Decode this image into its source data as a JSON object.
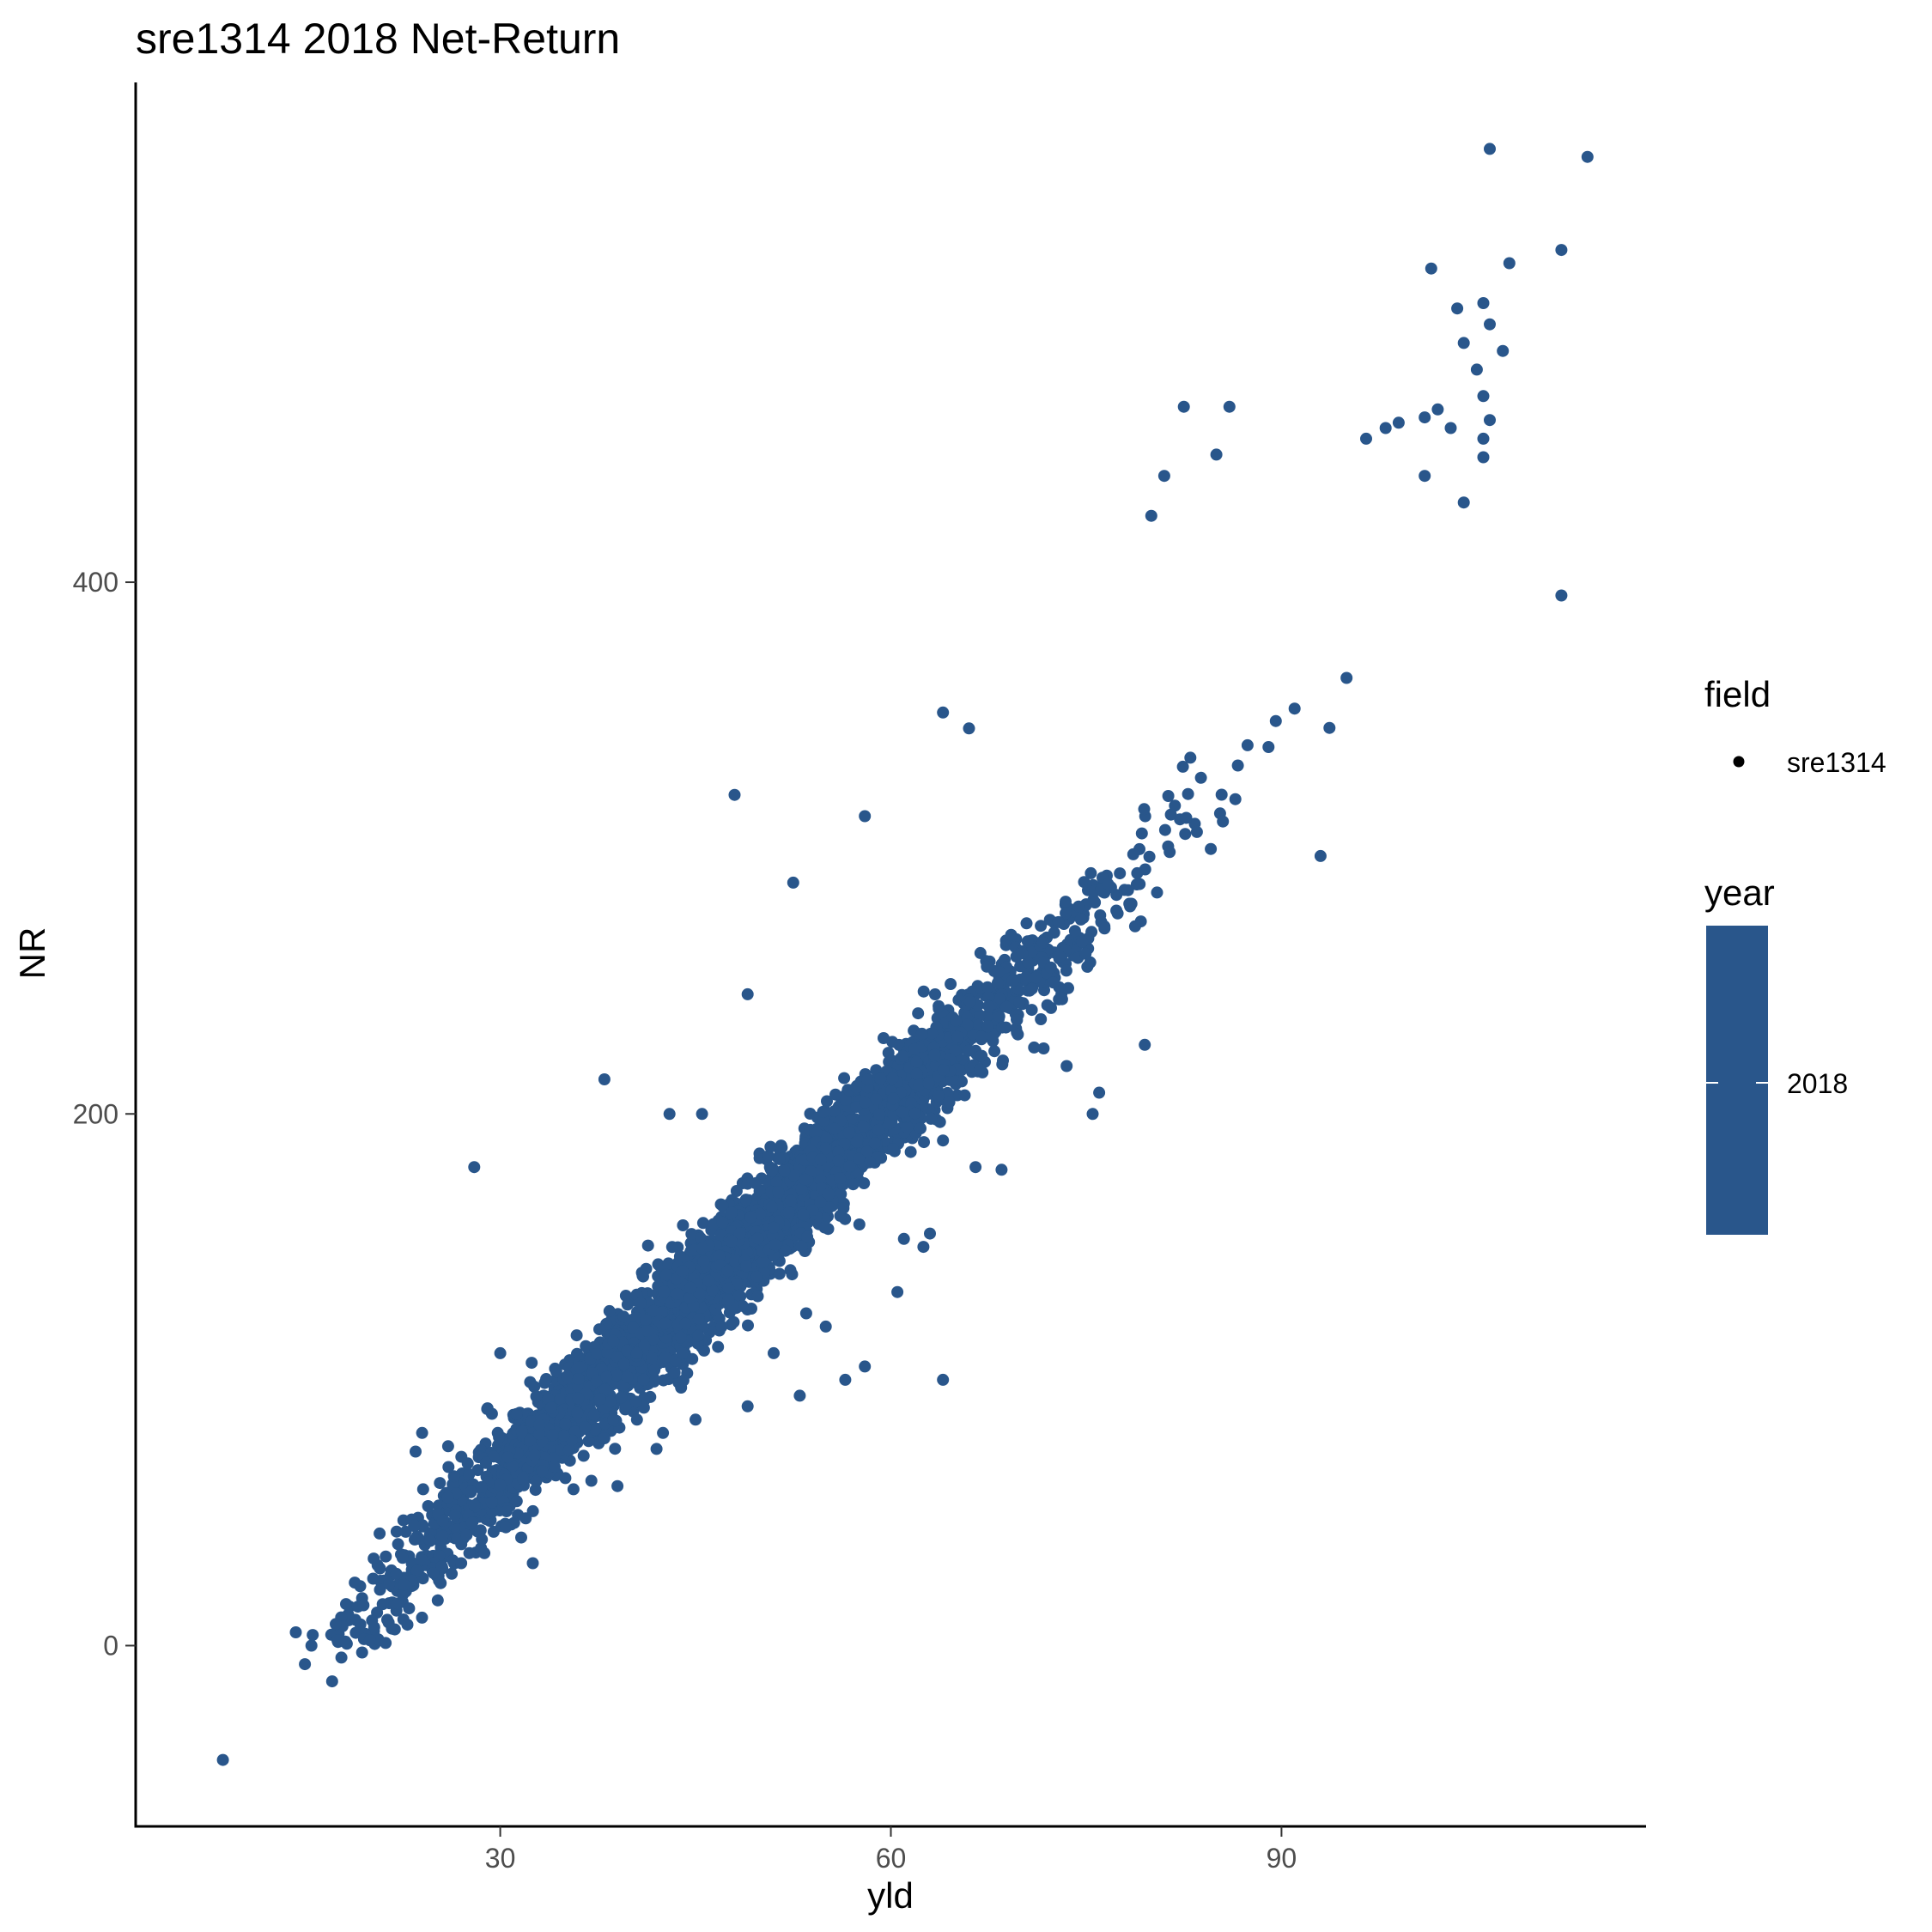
{
  "chart_data": {
    "type": "scatter",
    "title": "sre1314 2018 Net-Return",
    "xlabel": "yld",
    "ylabel": "NR",
    "xlim": [
      2,
      118
    ],
    "ylim": [
      -68,
      588
    ],
    "xticks": [
      30,
      60,
      90
    ],
    "yticks": [
      0,
      200,
      400
    ],
    "grid": false,
    "point_color": "#29568B",
    "legend": {
      "placement": "right",
      "field": {
        "title": "field",
        "entries": [
          "sre1314"
        ]
      },
      "year": {
        "title": "year",
        "entries": [
          "2018"
        ],
        "color": "#29568B"
      }
    },
    "trend": {
      "slope": 4.625,
      "intercept": -75,
      "spread": 10,
      "point_count": 3800
    },
    "outliers": [
      [
        8.7,
        -43
      ],
      [
        14.3,
        5
      ],
      [
        15.0,
        -7
      ],
      [
        15.5,
        0
      ],
      [
        15.6,
        4
      ],
      [
        17.5,
        2
      ],
      [
        20.0,
        2
      ],
      [
        21.2,
        1
      ],
      [
        23.0,
        14
      ],
      [
        25.2,
        17
      ],
      [
        27.0,
        31
      ],
      [
        22.5,
        33
      ],
      [
        32.5,
        31
      ],
      [
        37.0,
        62
      ],
      [
        35.0,
        63
      ],
      [
        39.0,
        60
      ],
      [
        42.0,
        74
      ],
      [
        38.0,
        78
      ],
      [
        40.5,
        85
      ],
      [
        42.5,
        80
      ],
      [
        45.0,
        85
      ],
      [
        49.0,
        90
      ],
      [
        53.0,
        94
      ],
      [
        56.5,
        100
      ],
      [
        58.0,
        105
      ],
      [
        51.0,
        110
      ],
      [
        60.5,
        133
      ],
      [
        53.5,
        125
      ],
      [
        64.0,
        100
      ],
      [
        63.0,
        155
      ],
      [
        62.5,
        150
      ],
      [
        66.5,
        180
      ],
      [
        68.5,
        179
      ],
      [
        64.0,
        190
      ],
      [
        71.0,
        225
      ],
      [
        76.0,
        208
      ],
      [
        75.5,
        200
      ],
      [
        73.5,
        218
      ],
      [
        79.5,
        226
      ],
      [
        85.5,
        310
      ],
      [
        89.0,
        338
      ],
      [
        93.0,
        297
      ],
      [
        95.0,
        364
      ],
      [
        111.5,
        395
      ],
      [
        80.0,
        425
      ],
      [
        81.0,
        440
      ],
      [
        85.0,
        448
      ],
      [
        82.5,
        466
      ],
      [
        86.0,
        466
      ],
      [
        83.0,
        334
      ],
      [
        64.0,
        351
      ],
      [
        66.0,
        345
      ],
      [
        48.0,
        320
      ],
      [
        43.0,
        200
      ],
      [
        45.5,
        200
      ],
      [
        28.0,
        180
      ],
      [
        52.5,
        287
      ],
      [
        58.0,
        312
      ],
      [
        38.0,
        213
      ],
      [
        49.0,
        245
      ],
      [
        30.0,
        110
      ],
      [
        36.0,
        93
      ],
      [
        33.0,
        83
      ],
      [
        29.0,
        89
      ],
      [
        40.5,
        110
      ],
      [
        26.0,
        75
      ],
      [
        23.5,
        73
      ],
      [
        24.0,
        80
      ],
      [
        44.0,
        110
      ],
      [
        47.0,
        120
      ],
      [
        55.0,
        120
      ],
      [
        61.0,
        153
      ],
      [
        106.0,
        563
      ],
      [
        113.5,
        560
      ],
      [
        111.5,
        525
      ],
      [
        107.5,
        520
      ],
      [
        101.5,
        518
      ],
      [
        105.5,
        505
      ],
      [
        106.0,
        497
      ],
      [
        103.5,
        503
      ],
      [
        104.0,
        490
      ],
      [
        107.0,
        487
      ],
      [
        105.0,
        480
      ],
      [
        102.0,
        465
      ],
      [
        101.0,
        462
      ],
      [
        105.5,
        470
      ],
      [
        106.0,
        461
      ],
      [
        105.5,
        454
      ],
      [
        105.5,
        447
      ],
      [
        98.0,
        458
      ],
      [
        99.0,
        460
      ],
      [
        103.0,
        458
      ],
      [
        96.5,
        454
      ],
      [
        101.0,
        440
      ],
      [
        104.0,
        430
      ]
    ]
  }
}
